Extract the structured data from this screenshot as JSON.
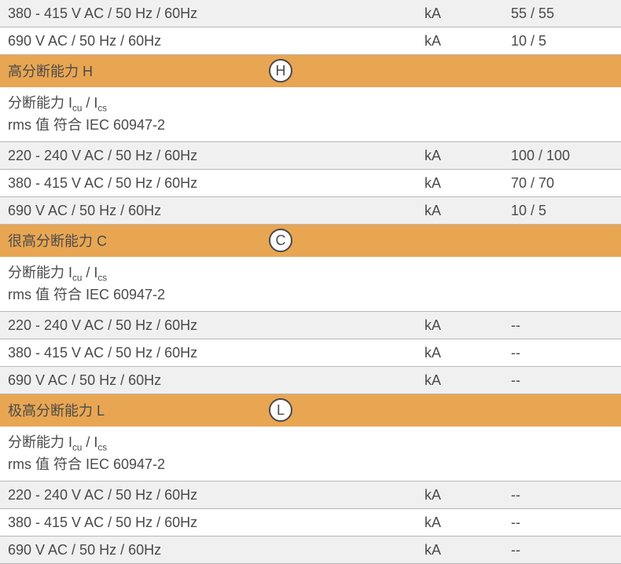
{
  "colors": {
    "header_bg": "#e8a653",
    "row_light": "#f0f0f0",
    "row_white": "#ffffff",
    "text": "#4a4a4a",
    "border": "#b8b8b8"
  },
  "initial_rows": [
    {
      "label": "380 - 415 V AC / 50 Hz / 60Hz",
      "unit": "kA",
      "value": "55 / 55",
      "bg": "light"
    },
    {
      "label": "690 V AC / 50 Hz / 60Hz",
      "unit": "kA",
      "value": "10 / 5",
      "bg": "white"
    }
  ],
  "sections": [
    {
      "title": "高分断能力 H",
      "badge": "H",
      "subheader_line1_prefix": "分断能力 I",
      "subheader_line1_sub1": "cu",
      "subheader_line1_mid": " / I",
      "subheader_line1_sub2": "cs",
      "subheader_line2": "rms 值 符合 IEC 60947-2",
      "rows": [
        {
          "label": "220 - 240 V AC / 50 Hz / 60Hz",
          "unit": "kA",
          "value": "100 / 100",
          "bg": "light"
        },
        {
          "label": "380 - 415 V AC / 50 Hz / 60Hz",
          "unit": "kA",
          "value": "70 / 70",
          "bg": "white"
        },
        {
          "label": "690 V AC / 50 Hz / 60Hz",
          "unit": "kA",
          "value": "10 / 5",
          "bg": "light"
        }
      ]
    },
    {
      "title": "很高分断能力 C",
      "badge": "C",
      "subheader_line1_prefix": "分断能力 I",
      "subheader_line1_sub1": "cu",
      "subheader_line1_mid": " / I",
      "subheader_line1_sub2": "cs",
      "subheader_line2": "rms 值 符合 IEC 60947-2",
      "rows": [
        {
          "label": "220 - 240 V AC / 50 Hz / 60Hz",
          "unit": "kA",
          "value": "--",
          "bg": "light"
        },
        {
          "label": "380 - 415 V AC / 50 Hz / 60Hz",
          "unit": "kA",
          "value": "--",
          "bg": "white"
        },
        {
          "label": "690 V AC / 50 Hz / 60Hz",
          "unit": "kA",
          "value": "--",
          "bg": "light"
        }
      ]
    },
    {
      "title": "极高分断能力 L",
      "badge": "L",
      "subheader_line1_prefix": "分断能力 I",
      "subheader_line1_sub1": "cu",
      "subheader_line1_mid": " / I",
      "subheader_line1_sub2": "cs",
      "subheader_line2": "rms 值 符合 IEC 60947-2",
      "rows": [
        {
          "label": "220 - 240 V AC / 50 Hz / 60Hz",
          "unit": "kA",
          "value": "--",
          "bg": "light"
        },
        {
          "label": "380 - 415 V AC / 50 Hz / 60Hz",
          "unit": "kA",
          "value": "--",
          "bg": "white"
        },
        {
          "label": "690 V AC / 50 Hz / 60Hz",
          "unit": "kA",
          "value": "--",
          "bg": "light"
        }
      ]
    }
  ]
}
